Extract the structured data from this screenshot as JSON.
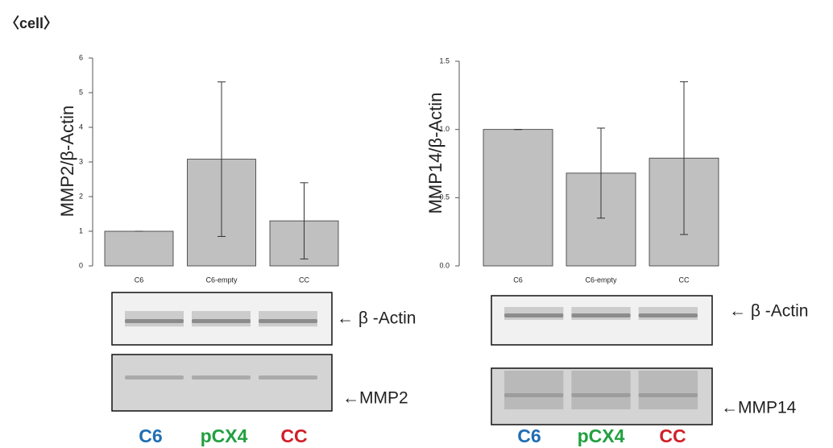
{
  "header": {
    "title": "〈cell〉"
  },
  "chart_data": [
    {
      "type": "bar",
      "y_label": "MMP2/β-Actin",
      "categories": [
        "C6",
        "C6-empty",
        "CC"
      ],
      "values": [
        1.0,
        3.08,
        1.3
      ],
      "errors": [
        0,
        2.23,
        1.1
      ],
      "color": "#c0c0c0",
      "ylim": [
        0,
        6
      ],
      "yticks": [
        0,
        1,
        2,
        3,
        4,
        5,
        6
      ]
    },
    {
      "type": "bar",
      "y_label": "MMP14/β-Actin",
      "categories": [
        "C6",
        "C6-empty",
        "CC"
      ],
      "values": [
        1.0,
        0.68,
        0.79
      ],
      "errors": [
        0,
        0.33,
        0.56
      ],
      "color": "#c0c0c0",
      "ylim": [
        0,
        1.5
      ],
      "yticks": [
        {
          "value": 0,
          "label": "0.0"
        },
        {
          "value": 0.5,
          "label": "0.5"
        },
        {
          "value": 1.0,
          "label": "1.0"
        },
        {
          "value": 1.5,
          "label": "1.5"
        }
      ]
    }
  ],
  "panels": [
    {
      "blot_labels": [
        "← β -Actin",
        "←MMP2"
      ],
      "lanes": [
        {
          "text": "C6",
          "color": "#1f6eb4"
        },
        {
          "text": "pCX4",
          "color": "#22a040"
        },
        {
          "text": "CC",
          "color": "#d0202a"
        }
      ]
    },
    {
      "blot_labels": [
        "← β -Actin",
        "←MMP14"
      ],
      "lanes": [
        {
          "text": "C6",
          "color": "#1f6eb4"
        },
        {
          "text": "pCX4",
          "color": "#22a040"
        },
        {
          "text": "CC",
          "color": "#d0202a"
        }
      ]
    }
  ]
}
